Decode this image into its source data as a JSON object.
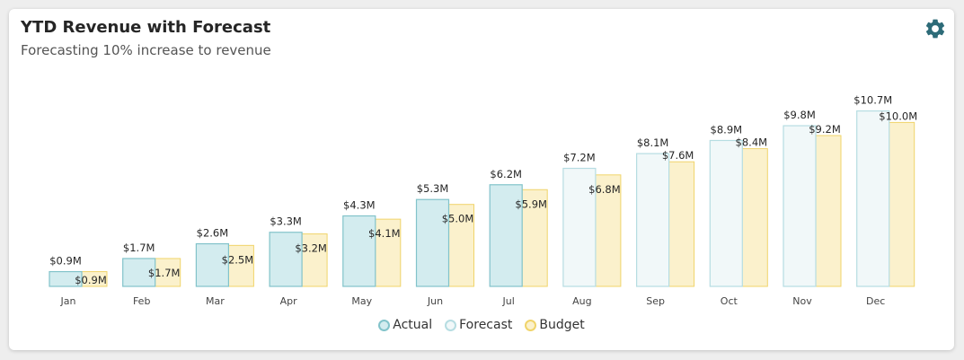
{
  "header": {
    "title": "YTD Revenue with Forecast",
    "subtitle": "Forecasting 10% increase to revenue",
    "settings_icon": "gear-icon"
  },
  "colors": {
    "actual_fill": "#d3ecef",
    "actual_stroke": "#82c3ca",
    "forecast_fill": "#f1f8f9",
    "forecast_stroke": "#b6dde2",
    "budget_fill": "#fbf1cc",
    "budget_stroke": "#f0d46a",
    "icon": "#2d6b78"
  },
  "chart_data": {
    "type": "bar",
    "title": "YTD Revenue with Forecast",
    "subtitle": "Forecasting 10% increase to revenue",
    "categories": [
      "Jan",
      "Feb",
      "Mar",
      "Apr",
      "May",
      "Jun",
      "Jul",
      "Aug",
      "Sep",
      "Oct",
      "Nov",
      "Dec"
    ],
    "series": [
      {
        "name": "Actual",
        "values": [
          0.9,
          1.7,
          2.6,
          3.3,
          4.3,
          5.3,
          6.2,
          null,
          null,
          null,
          null,
          null
        ],
        "labels": [
          "$0.9M",
          "$1.7M",
          "$2.6M",
          "$3.3M",
          "$4.3M",
          "$5.3M",
          "$6.2M",
          null,
          null,
          null,
          null,
          null
        ]
      },
      {
        "name": "Forecast",
        "values": [
          null,
          null,
          null,
          null,
          null,
          null,
          null,
          7.2,
          8.1,
          8.9,
          9.8,
          10.7
        ],
        "labels": [
          null,
          null,
          null,
          null,
          null,
          null,
          null,
          "$7.2M",
          "$8.1M",
          "$8.9M",
          "$9.8M",
          "$10.7M"
        ]
      },
      {
        "name": "Budget",
        "values": [
          0.9,
          1.7,
          2.5,
          3.2,
          4.1,
          5.0,
          5.9,
          6.8,
          7.6,
          8.4,
          9.2,
          10.0
        ],
        "labels": [
          "$0.9M",
          "$1.7M",
          "$2.5M",
          "$3.2M",
          "$4.1M",
          "$5.0M",
          "$5.9M",
          "$6.8M",
          "$7.6M",
          "$8.4M",
          "$9.2M",
          "$10.0M"
        ]
      }
    ],
    "ylim": [
      0,
      11.5
    ],
    "grid": false,
    "legend_position": "bottom-center",
    "legend": [
      "Actual",
      "Forecast",
      "Budget"
    ]
  }
}
